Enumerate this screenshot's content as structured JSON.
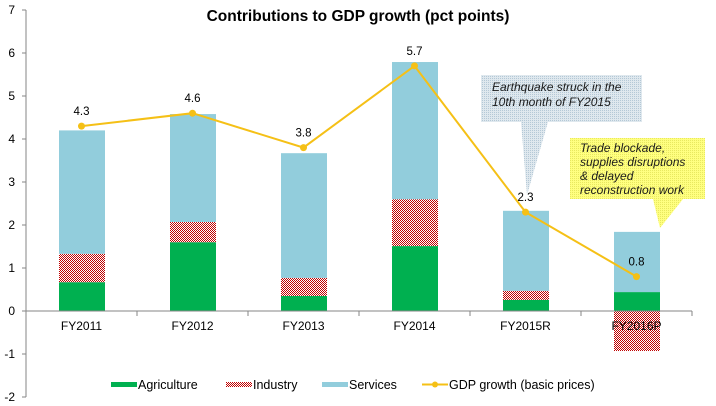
{
  "chart_data": {
    "type": "bar",
    "stacked": true,
    "title": "Contributions to GDP growth (pct points)",
    "xlabel": "",
    "ylabel": "",
    "ylim": [
      -2,
      7
    ],
    "yticks": [
      -2,
      -1,
      0,
      1,
      2,
      3,
      4,
      5,
      6,
      7
    ],
    "grid": false,
    "legend_position": "bottom",
    "categories": [
      "FY2011",
      "FY2012",
      "FY2013",
      "FY2014",
      "FY2015R",
      "FY2016P"
    ],
    "series": [
      {
        "name": "Agriculture",
        "kind": "bar",
        "color": "#00b050",
        "values": [
          0.67,
          1.6,
          0.35,
          1.51,
          0.26,
          0.44
        ]
      },
      {
        "name": "Industry",
        "kind": "bar",
        "color": "#c0504d",
        "pattern": "checker",
        "values": [
          0.66,
          0.47,
          0.42,
          1.09,
          0.21,
          -0.93
        ]
      },
      {
        "name": "Services",
        "kind": "bar",
        "color": "#92cddc",
        "values": [
          2.87,
          2.51,
          2.9,
          3.19,
          1.86,
          1.4
        ]
      },
      {
        "name": "GDP growth (basic prices)",
        "kind": "line",
        "color": "#f5c016",
        "values": [
          4.3,
          4.6,
          3.8,
          5.7,
          2.3,
          0.8
        ],
        "labels": [
          "4.3",
          "4.6",
          "3.8",
          "5.7",
          "2.3",
          "0.8"
        ]
      }
    ],
    "annotations": [
      {
        "name": "earthquake-callout",
        "text_lines": [
          "Earthquake struck in the",
          "10th month of FY2015"
        ],
        "points_to": "FY2015R",
        "color": "#c6d9e6"
      },
      {
        "name": "trade-blockade-callout",
        "text_lines": [
          "Trade blockade,",
          "supplies disruptions",
          "& delayed",
          "reconstruction work"
        ],
        "points_to": "FY2016P",
        "color": "#f4f46a"
      }
    ]
  }
}
